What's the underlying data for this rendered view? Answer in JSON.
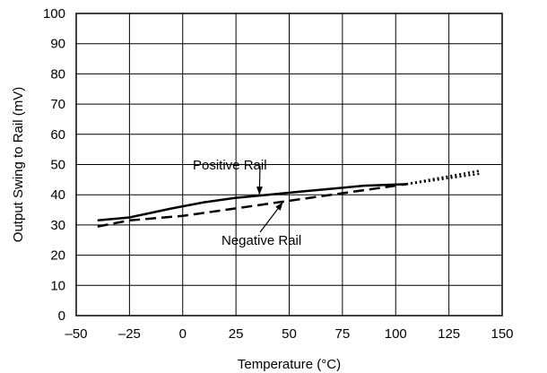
{
  "chart_data": {
    "type": "line",
    "title": "",
    "xlabel": "Temperature (°C)",
    "ylabel": "Output Swing to Rail (mV)",
    "xlim": [
      -50,
      150
    ],
    "ylim": [
      0,
      100
    ],
    "xticks": [
      -50,
      -25,
      0,
      25,
      50,
      75,
      100,
      125,
      150
    ],
    "yticks": [
      0,
      10,
      20,
      30,
      40,
      50,
      60,
      70,
      80,
      90,
      100
    ],
    "xtick_labels": [
      "–50",
      "–25",
      "0",
      "25",
      "50",
      "75",
      "100",
      "125",
      "150"
    ],
    "ytick_labels": [
      "0",
      "10",
      "20",
      "30",
      "40",
      "50",
      "60",
      "70",
      "80",
      "90",
      "100"
    ],
    "grid": true,
    "legend": "none",
    "series": [
      {
        "name": "Positive Rail",
        "style": "solid",
        "x": [
          -40,
          -25,
          -5,
          10,
          25,
          40,
          55,
          70,
          85,
          105
        ],
        "y": [
          31.5,
          32.5,
          35.5,
          37.5,
          39,
          40,
          41,
          42,
          43,
          43.5
        ],
        "extrapolated": {
          "style": "dotted",
          "x": [
            105,
            120,
            140
          ],
          "y": [
            43.5,
            45.5,
            48
          ]
        }
      },
      {
        "name": "Negative Rail",
        "style": "dashed",
        "x": [
          -40,
          -25,
          0,
          25,
          50,
          75,
          105
        ],
        "y": [
          29.5,
          31.5,
          33,
          35.5,
          38,
          40.5,
          43.5
        ],
        "extrapolated": {
          "style": "dotted",
          "x": [
            105,
            120,
            140
          ],
          "y": [
            43.5,
            45,
            47
          ]
        }
      }
    ],
    "annotations": [
      {
        "text": "Positive Rail",
        "arrow_to": {
          "x": 36,
          "y": 40
        }
      },
      {
        "text": "Negative Rail",
        "arrow_to": {
          "x": 47,
          "y": 37.5
        }
      }
    ],
    "colors": {
      "line": "#000000",
      "grid": "#000000",
      "background": "#ffffff"
    }
  }
}
